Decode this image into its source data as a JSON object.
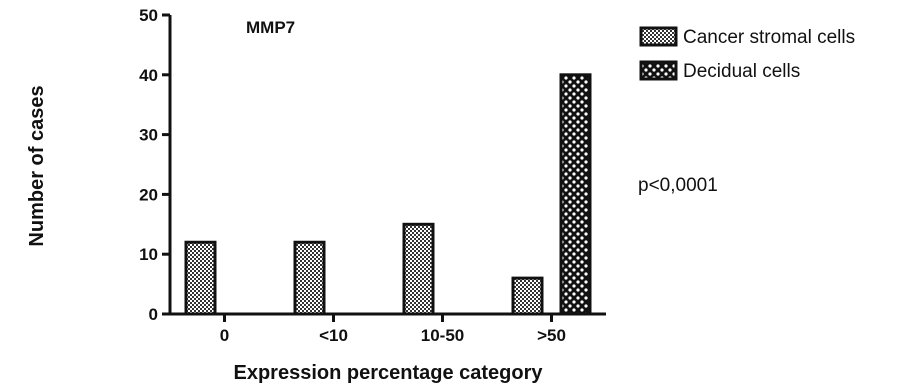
{
  "chart_data": {
    "type": "bar",
    "title": "MMP7",
    "xlabel": "Expression percentage category",
    "ylabel": "Number of cases",
    "categories": [
      "0",
      "<10",
      "10-50",
      ">50"
    ],
    "series": [
      {
        "name": "Cancer stromal cells",
        "values": [
          12,
          12,
          15,
          6
        ],
        "pattern": "dense-checker"
      },
      {
        "name": "Decidual cells",
        "values": [
          0,
          0,
          0,
          40
        ],
        "pattern": "coarse-checker"
      }
    ],
    "ylim": [
      0,
      50
    ],
    "yticks": [
      0,
      10,
      20,
      30,
      40,
      50
    ],
    "grid": false,
    "legend_position": "top-right",
    "annotation": "p<0,0001",
    "colors": {
      "ink": "#111111",
      "background": "#ffffff"
    }
  }
}
